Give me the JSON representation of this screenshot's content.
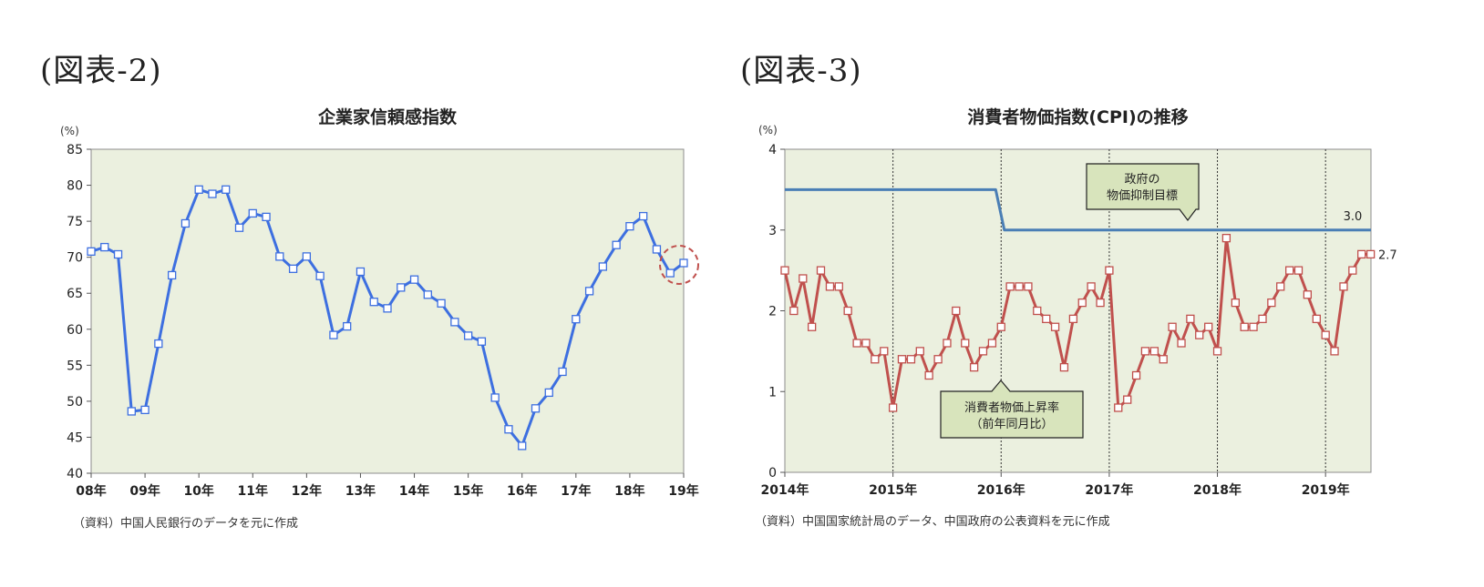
{
  "figures": [
    {
      "label": "(図表-2)",
      "source": "（資料）中国人民銀行のデータを元に作成"
    },
    {
      "label": "(図表-3)",
      "source": "（資料）中国国家統計局のデータ、中国政府の公表資料を元に作成"
    }
  ],
  "chart_data": [
    {
      "type": "line",
      "title": "企業家信頼感指数",
      "ylabel": "(%)",
      "xlabel": "",
      "ylim": [
        40,
        85
      ],
      "yticks": [
        40,
        45,
        50,
        55,
        60,
        65,
        70,
        75,
        80,
        85
      ],
      "xlim": [
        2008,
        2019
      ],
      "xticks": [
        {
          "x": 2008,
          "label": "08年"
        },
        {
          "x": 2009,
          "label": "09年"
        },
        {
          "x": 2010,
          "label": "10年"
        },
        {
          "x": 2011,
          "label": "11年"
        },
        {
          "x": 2012,
          "label": "12年"
        },
        {
          "x": 2013,
          "label": "13年"
        },
        {
          "x": 2014,
          "label": "14年"
        },
        {
          "x": 2015,
          "label": "15年"
        },
        {
          "x": 2016,
          "label": "16年"
        },
        {
          "x": 2017,
          "label": "17年"
        },
        {
          "x": 2018,
          "label": "18年"
        },
        {
          "x": 2019,
          "label": "19年"
        }
      ],
      "grid": false,
      "plot_background": "#ebf0df",
      "series": [
        {
          "color": "#3d6fe0",
          "marker": "square",
          "x": [
            2008.0,
            2008.25,
            2008.5,
            2008.75,
            2009.0,
            2009.25,
            2009.5,
            2009.75,
            2010.0,
            2010.25,
            2010.5,
            2010.75,
            2011.0,
            2011.25,
            2011.5,
            2011.75,
            2012.0,
            2012.25,
            2012.5,
            2012.75,
            2013.0,
            2013.25,
            2013.5,
            2013.75,
            2014.0,
            2014.25,
            2014.5,
            2014.75,
            2015.0,
            2015.25,
            2015.5,
            2015.75,
            2016.0,
            2016.25,
            2016.5,
            2016.75,
            2017.0,
            2017.25,
            2017.5,
            2017.75,
            2018.0,
            2018.25,
            2018.5,
            2018.75,
            2019.0
          ],
          "values": [
            70.8,
            71.4,
            70.4,
            48.6,
            48.8,
            58.0,
            67.5,
            74.7,
            79.4,
            78.8,
            79.4,
            74.1,
            76.1,
            75.6,
            70.1,
            68.4,
            70.1,
            67.4,
            59.2,
            60.4,
            68.0,
            63.8,
            62.9,
            65.8,
            66.9,
            64.8,
            63.6,
            61.0,
            59.1,
            58.3,
            50.5,
            46.1,
            43.8,
            49.0,
            51.2,
            54.1,
            61.4,
            65.3,
            68.7,
            71.7,
            74.3,
            75.7,
            71.1,
            67.8,
            69.2
          ]
        }
      ],
      "annotations": [
        {
          "type": "circle",
          "color": "#c0504d",
          "around_point_index": 44
        }
      ]
    },
    {
      "type": "line",
      "title": "消費者物価指数(CPI)の推移",
      "ylabel": "(%)",
      "xlabel": "",
      "ylim": [
        0,
        4
      ],
      "yticks": [
        0,
        1,
        2,
        3,
        4
      ],
      "xlim": [
        2014,
        2019.42
      ],
      "xticks": [
        {
          "x": 2014,
          "label": "2014年"
        },
        {
          "x": 2015,
          "label": "2015年"
        },
        {
          "x": 2016,
          "label": "2016年"
        },
        {
          "x": 2017,
          "label": "2017年"
        },
        {
          "x": 2018,
          "label": "2018年"
        },
        {
          "x": 2019,
          "label": "2019年"
        }
      ],
      "grid": "vertical-dotted",
      "plot_background": "#ebf0df",
      "series": [
        {
          "name": "消費者物価上昇率（前年同月比）",
          "color": "#c0504d",
          "marker": "square",
          "x": [
            2014.0,
            2014.083,
            2014.167,
            2014.25,
            2014.333,
            2014.417,
            2014.5,
            2014.583,
            2014.667,
            2014.75,
            2014.833,
            2014.917,
            2015.0,
            2015.083,
            2015.167,
            2015.25,
            2015.333,
            2015.417,
            2015.5,
            2015.583,
            2015.667,
            2015.75,
            2015.833,
            2015.917,
            2016.0,
            2016.083,
            2016.167,
            2016.25,
            2016.333,
            2016.417,
            2016.5,
            2016.583,
            2016.667,
            2016.75,
            2016.833,
            2016.917,
            2017.0,
            2017.083,
            2017.167,
            2017.25,
            2017.333,
            2017.417,
            2017.5,
            2017.583,
            2017.667,
            2017.75,
            2017.833,
            2017.917,
            2018.0,
            2018.083,
            2018.167,
            2018.25,
            2018.333,
            2018.417,
            2018.5,
            2018.583,
            2018.667,
            2018.75,
            2018.833,
            2018.917,
            2019.0,
            2019.083,
            2019.167,
            2019.25,
            2019.333,
            2019.417
          ],
          "values": [
            2.5,
            2.0,
            2.4,
            1.8,
            2.5,
            2.3,
            2.3,
            2.0,
            1.6,
            1.6,
            1.4,
            1.5,
            0.8,
            1.4,
            1.4,
            1.5,
            1.2,
            1.4,
            1.6,
            2.0,
            1.6,
            1.3,
            1.5,
            1.6,
            1.8,
            2.3,
            2.3,
            2.3,
            2.0,
            1.9,
            1.8,
            1.3,
            1.9,
            2.1,
            2.3,
            2.1,
            2.5,
            0.8,
            0.9,
            1.2,
            1.5,
            1.5,
            1.4,
            1.8,
            1.6,
            1.9,
            1.7,
            1.8,
            1.5,
            2.9,
            2.1,
            1.8,
            1.8,
            1.9,
            2.1,
            2.3,
            2.5,
            2.5,
            2.2,
            1.9,
            1.7,
            1.5,
            2.3,
            2.5,
            2.7,
            2.7
          ],
          "end_label": "2.7"
        },
        {
          "name": "政府の物価抑制目標",
          "color": "#4a7eb5",
          "marker": "none",
          "x": [
            2014.0,
            2015.95,
            2016.03,
            2019.42
          ],
          "values": [
            3.5,
            3.5,
            3.0,
            3.0
          ],
          "end_label": "3.0"
        }
      ],
      "callouts": [
        {
          "text": "政府の\n物価抑制目標",
          "fill": "#d8e4bc"
        },
        {
          "text": "消費者物価上昇率\n（前年同月比）",
          "fill": "#d8e4bc"
        }
      ]
    }
  ]
}
